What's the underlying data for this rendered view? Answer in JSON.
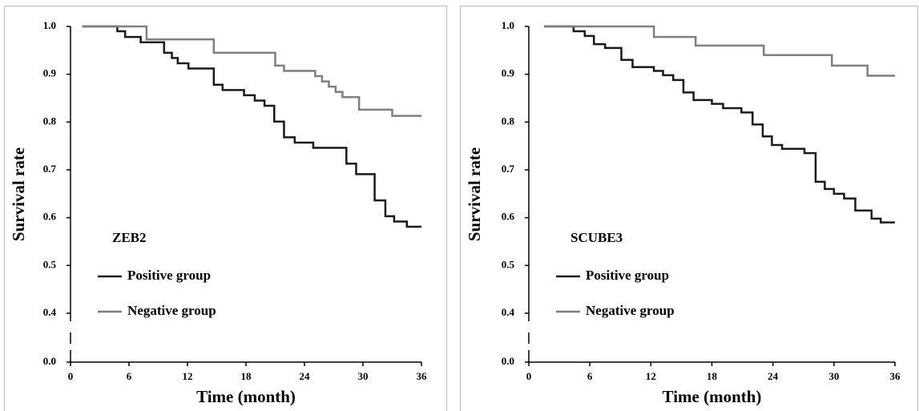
{
  "chart_data": [
    {
      "type": "step",
      "title": "ZEB2",
      "xlabel": "Time (month)",
      "ylabel": "Survival rate",
      "xlim": [
        0,
        36
      ],
      "xticks": [
        0,
        6,
        12,
        18,
        24,
        30,
        36
      ],
      "ylim": [
        0,
        1
      ],
      "y_break": [
        0,
        0.4
      ],
      "yticks": [
        {
          "value": 0,
          "label": "0.0"
        },
        0.4,
        0.5,
        0.6,
        0.7,
        0.8,
        0.9,
        {
          "value": 1,
          "label": "1.0"
        }
      ],
      "legend": "left",
      "series": [
        {
          "name": "Positive group",
          "color": "#1a1a1a",
          "x": [
            1.2,
            4.8,
            5.6,
            7.2,
            9.6,
            10.4,
            11,
            12.1,
            14.7,
            15.6,
            17.8,
            18.9,
            19.9,
            20.9,
            21.9,
            23,
            24.9,
            28.3,
            29.3,
            31.2,
            32.3,
            33.2,
            34.5,
            36
          ],
          "values": [
            1.0,
            0.99,
            0.978,
            0.967,
            0.945,
            0.934,
            0.923,
            0.912,
            0.878,
            0.867,
            0.856,
            0.845,
            0.834,
            0.801,
            0.768,
            0.757,
            0.746,
            0.713,
            0.691,
            0.636,
            0.603,
            0.592,
            0.581,
            0.581
          ]
        },
        {
          "name": "Negative group",
          "color": "#7f7f7f",
          "x": [
            1.2,
            7.8,
            14.7,
            21,
            21.9,
            25.1,
            25.8,
            26.5,
            27.2,
            27.9,
            29.6,
            33,
            36
          ],
          "values": [
            1.0,
            0.973,
            0.945,
            0.918,
            0.907,
            0.896,
            0.885,
            0.874,
            0.863,
            0.852,
            0.826,
            0.813,
            0.813
          ]
        }
      ]
    },
    {
      "type": "step",
      "title": "SCUBE3",
      "xlabel": "Time (month)",
      "ylabel": "Survival rate",
      "xlim": [
        0,
        36
      ],
      "xticks": [
        0,
        6,
        12,
        18,
        24,
        30,
        36
      ],
      "ylim": [
        0,
        1
      ],
      "y_break": [
        0,
        0.4
      ],
      "yticks": [
        {
          "value": 0,
          "label": "0.0"
        },
        0.4,
        0.5,
        0.6,
        0.7,
        0.8,
        0.9,
        {
          "value": 1,
          "label": "1.0"
        }
      ],
      "legend": "left",
      "series": [
        {
          "name": "Positive group",
          "color": "#1a1a1a",
          "x": [
            1.5,
            4.4,
            5.5,
            6.4,
            7.5,
            9.1,
            10.2,
            12.3,
            13.2,
            14.2,
            15.2,
            16.2,
            18,
            19.1,
            20.9,
            22,
            23,
            23.9,
            24.9,
            27.1,
            28.2,
            29.1,
            30,
            31,
            32.1,
            33.7,
            34.6,
            36
          ],
          "values": [
            1.0,
            0.99,
            0.98,
            0.963,
            0.955,
            0.93,
            0.915,
            0.907,
            0.898,
            0.888,
            0.862,
            0.846,
            0.838,
            0.829,
            0.82,
            0.795,
            0.77,
            0.752,
            0.744,
            0.735,
            0.675,
            0.66,
            0.65,
            0.64,
            0.615,
            0.598,
            0.59,
            0.59
          ]
        },
        {
          "name": "Negative group",
          "color": "#7f7f7f",
          "x": [
            1.5,
            12.3,
            16.4,
            23.1,
            29.8,
            33.3,
            36
          ],
          "values": [
            1.0,
            0.978,
            0.96,
            0.94,
            0.918,
            0.897,
            0.897
          ]
        }
      ]
    }
  ]
}
